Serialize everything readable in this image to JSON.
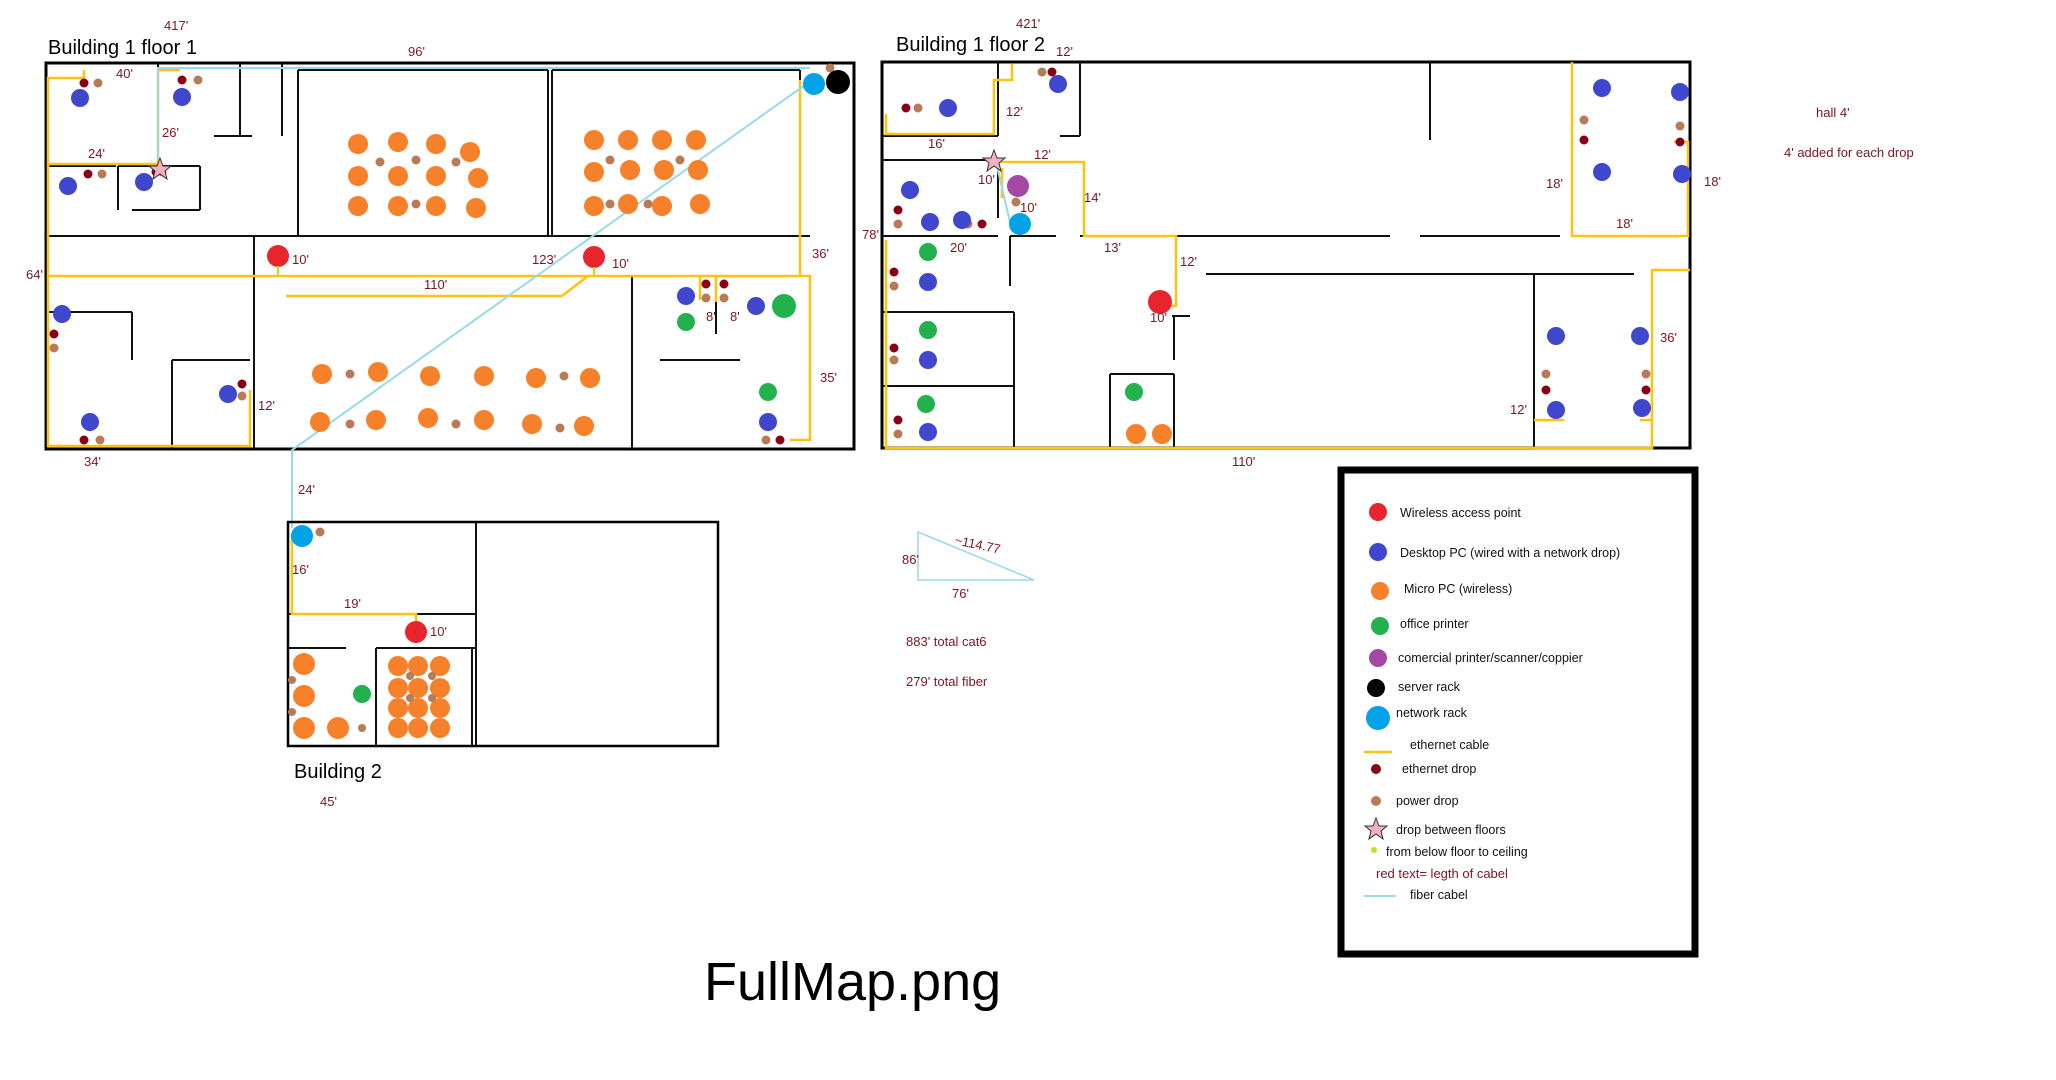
{
  "buildings": {
    "b1f1": {
      "title": "Building 1 floor 1",
      "total": "417'"
    },
    "b1f2": {
      "title": "Building 1 floor 2",
      "total": "421'"
    },
    "b2": {
      "title": "Building 2",
      "total": "45'"
    }
  },
  "dimensions": {
    "b1f1": [
      "96'",
      "40'",
      "26'",
      "24'",
      "10'",
      "10'",
      "123'",
      "110'",
      "64'",
      "36'",
      "8'",
      "8'",
      "12'",
      "35'",
      "34'",
      "24'"
    ],
    "b1f2": [
      "12'",
      "12'",
      "16'",
      "10'",
      "12'",
      "10'",
      "14'",
      "20'",
      "78'",
      "13'",
      "12'",
      "10'",
      "18'",
      "18'",
      "18'",
      "36'",
      "12'",
      "110'"
    ],
    "b2": [
      "16'",
      "19'",
      "10'"
    ]
  },
  "notes": {
    "hall": "hall 4'",
    "per_drop": "4' added for each drop"
  },
  "triangle": {
    "hyp": "~114.77",
    "side_a": "86'",
    "side_b": "76'"
  },
  "totals": {
    "cat6": "883' total cat6",
    "fiber": "279' total fiber"
  },
  "legend": {
    "items": [
      {
        "label": "Wireless access point",
        "icon": "wireless-ap-icon",
        "color": "#e8242c"
      },
      {
        "label": "Desktop PC (wired with a network drop)",
        "icon": "desktop-pc-icon",
        "color": "#3f48cc"
      },
      {
        "label": "Micro PC (wireless)",
        "icon": "micro-pc-icon",
        "color": "#f7802a"
      },
      {
        "label": "office printer",
        "icon": "office-printer-icon",
        "color": "#22b14c"
      },
      {
        "label": "comercial printer/scanner/coppier",
        "icon": "commercial-printer-icon",
        "color": "#a349a4"
      },
      {
        "label": "server rack",
        "icon": "server-rack-icon",
        "color": "#000000"
      },
      {
        "label": "network rack",
        "icon": "network-rack-icon",
        "color": "#00a2e8"
      },
      {
        "label": "ethernet cable",
        "icon": "ethernet-cable-icon",
        "color": "#ffc20e"
      },
      {
        "label": "ethernet drop",
        "icon": "ethernet-drop-icon",
        "color": "#880015"
      },
      {
        "label": "power drop",
        "icon": "power-drop-icon",
        "color": "#b97a57"
      },
      {
        "label": "drop between floors",
        "icon": "star-icon",
        "color": "#f5b0c0"
      },
      {
        "label": "from below floor to ceiling",
        "icon": "green-dot-icon",
        "color": "#b5e61d"
      },
      {
        "label": "red text= legth of cabel",
        "icon": "",
        "color": "#880015"
      },
      {
        "label": "fiber cabel",
        "icon": "fiber-cable-icon",
        "color": "#99d9ea"
      }
    ]
  },
  "caption": "FullMap.png"
}
